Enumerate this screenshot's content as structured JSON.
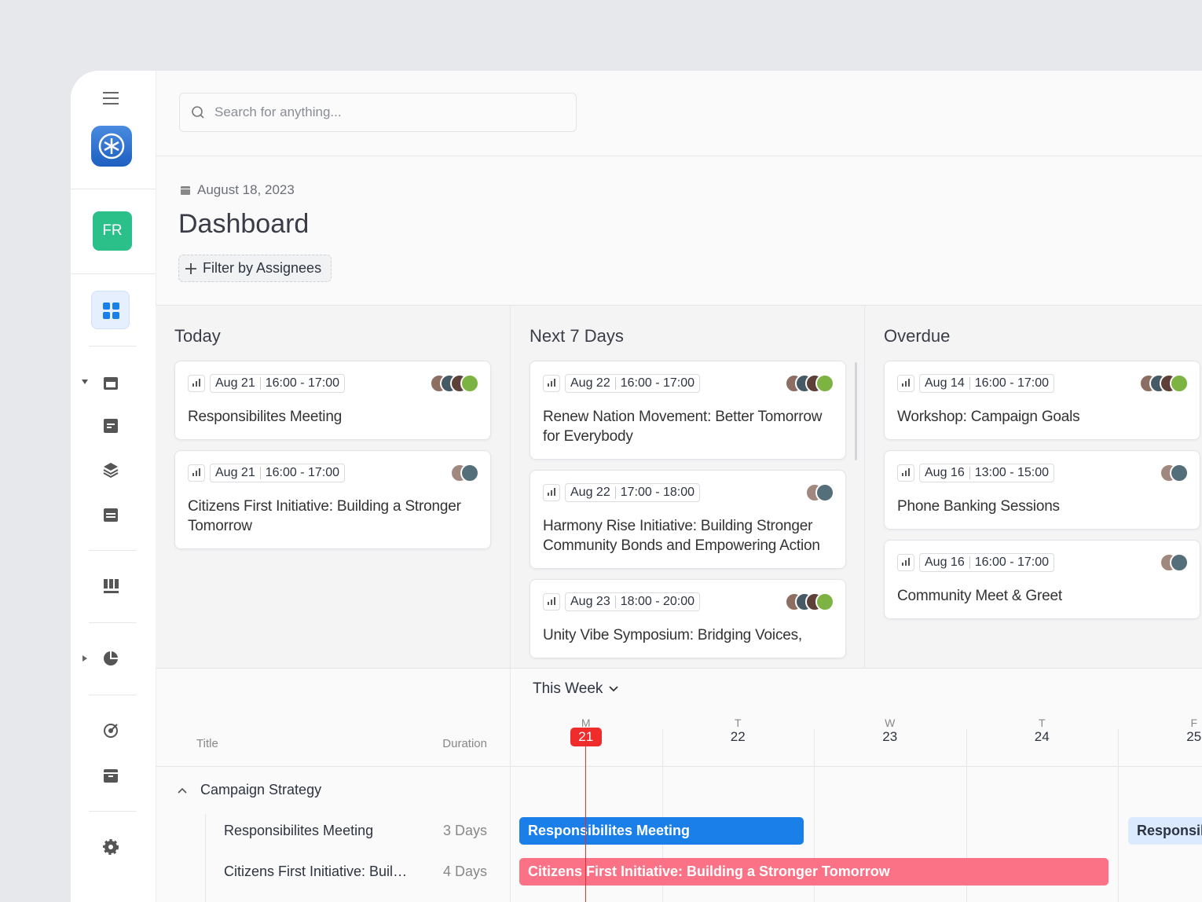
{
  "search": {
    "placeholder": "Search for anything..."
  },
  "user": {
    "initials": "FR"
  },
  "header": {
    "date": "August 18, 2023",
    "title": "Dashboard",
    "filter": "Filter by Assignees"
  },
  "columns": [
    {
      "title": "Today",
      "cards": [
        {
          "date": "Aug 21",
          "time": "16:00 - 17:00",
          "title": "Responsibilites Meeting",
          "avatars": [
            "#7cb342",
            "#5d4037",
            "#455a64",
            "#8d6e63"
          ]
        },
        {
          "date": "Aug 21",
          "time": "16:00 - 17:00",
          "title": "Citizens First Initiative: Building a Stronger Tomorrow",
          "avatars": [
            "#546e7a",
            "#a1887f"
          ]
        }
      ]
    },
    {
      "title": "Next 7 Days",
      "cards": [
        {
          "date": "Aug 22",
          "time": "16:00 - 17:00",
          "title": "Renew Nation Movement: Better Tomorrow for Everybody",
          "avatars": [
            "#7cb342",
            "#5d4037",
            "#455a64",
            "#8d6e63"
          ]
        },
        {
          "date": "Aug 22",
          "time": "17:00 - 18:00",
          "title": "Harmony Rise Initiative: Building Stronger Community Bonds and Empowering Action",
          "avatars": [
            "#546e7a",
            "#a1887f"
          ]
        },
        {
          "date": "Aug 23",
          "time": "18:00 - 20:00",
          "title": "Unity Vibe Symposium: Bridging Voices,",
          "avatars": [
            "#7cb342",
            "#5d4037",
            "#455a64",
            "#8d6e63"
          ]
        }
      ]
    },
    {
      "title": "Overdue",
      "cards": [
        {
          "date": "Aug 14",
          "time": "16:00 - 17:00",
          "title": "Workshop: Campaign Goals",
          "avatars": [
            "#7cb342",
            "#5d4037",
            "#455a64",
            "#8d6e63"
          ]
        },
        {
          "date": "Aug 16",
          "time": "13:00 - 15:00",
          "title": "Phone Banking Sessions",
          "avatars": [
            "#546e7a",
            "#a1887f"
          ]
        },
        {
          "date": "Aug 16",
          "time": "16:00 - 17:00",
          "title": "Community Meet & Greet",
          "avatars": [
            "#546e7a",
            "#a1887f"
          ]
        }
      ]
    }
  ],
  "timeline": {
    "period": "This Week",
    "title_header": "Title",
    "duration_header": "Duration",
    "days": [
      {
        "letter": "M",
        "date": "21"
      },
      {
        "letter": "T",
        "date": "22"
      },
      {
        "letter": "W",
        "date": "23"
      },
      {
        "letter": "T",
        "date": "24"
      },
      {
        "letter": "F",
        "date": "25"
      }
    ],
    "groups": [
      {
        "name": "Campaign Strategy",
        "rows": [
          {
            "title": "Responsibilites Meeting",
            "duration": "3 Days",
            "bars": [
              {
                "color": "#1a7fe8",
                "text_color": "#ffffff"
              },
              {
                "color": "#dbeafe",
                "text_color": "#2d3340"
              }
            ]
          },
          {
            "title": "Citizens First Initiative: Building a Stronger Tomorrow",
            "duration": "4 Days",
            "bars": [
              {
                "color": "#fb7185",
                "text_color": "#ffffff"
              }
            ]
          }
        ]
      }
    ]
  }
}
